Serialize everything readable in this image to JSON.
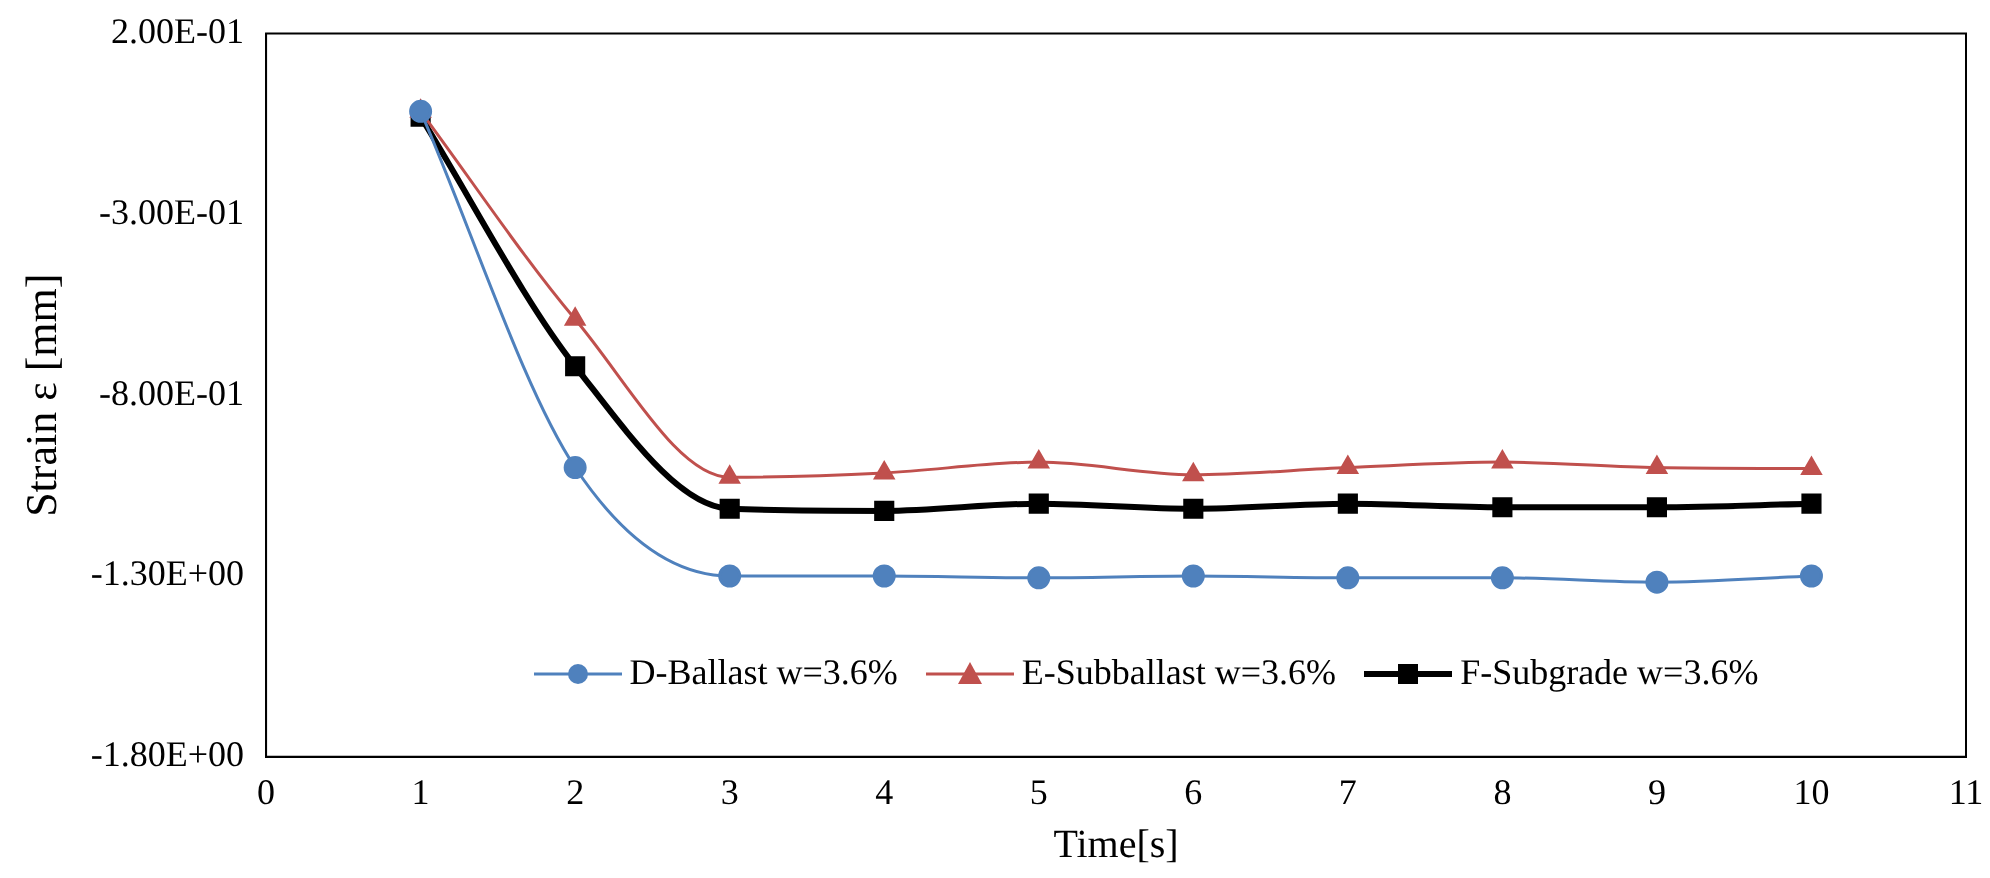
{
  "chart_data": {
    "type": "line",
    "xlabel": "Time[s]",
    "ylabel": "Strain ε [mm]",
    "xlim": [
      0,
      11
    ],
    "xticks": [
      0,
      1,
      2,
      3,
      4,
      5,
      6,
      7,
      8,
      9,
      10,
      11
    ],
    "ylim": [
      -1.8,
      0.2
    ],
    "yticks": [
      {
        "value": 0.2,
        "label": "2.00E-01"
      },
      {
        "value": -0.3,
        "label": "-3.00E-01"
      },
      {
        "value": -0.8,
        "label": "-8.00E-01"
      },
      {
        "value": -1.3,
        "label": "-1.30E+00"
      },
      {
        "value": -1.8,
        "label": "-1.80E+00"
      }
    ],
    "x": [
      1,
      2,
      3,
      4,
      5,
      6,
      7,
      8,
      9,
      10
    ],
    "legend": "bottom",
    "grid": false,
    "series": [
      {
        "name": "D-Ballast w=3.6%",
        "color": "#4f81bd",
        "marker": "circle",
        "values": [
          -0.015,
          -1.0,
          -1.3,
          -1.3,
          -1.305,
          -1.3,
          -1.305,
          -1.305,
          -1.317,
          -1.3
        ]
      },
      {
        "name": "E-Subballast w=3.6%",
        "color": "#c0504d",
        "marker": "triangle",
        "values": [
          -0.015,
          -0.59,
          -1.027,
          -1.015,
          -0.985,
          -1.02,
          -1.0,
          -0.985,
          -1.0,
          -1.003
        ]
      },
      {
        "name": "F-Subgrade w=3.6%",
        "color": "#000000",
        "marker": "square",
        "values": [
          -0.03,
          -0.72,
          -1.114,
          -1.12,
          -1.1,
          -1.114,
          -1.1,
          -1.11,
          -1.11,
          -1.1
        ]
      }
    ]
  }
}
